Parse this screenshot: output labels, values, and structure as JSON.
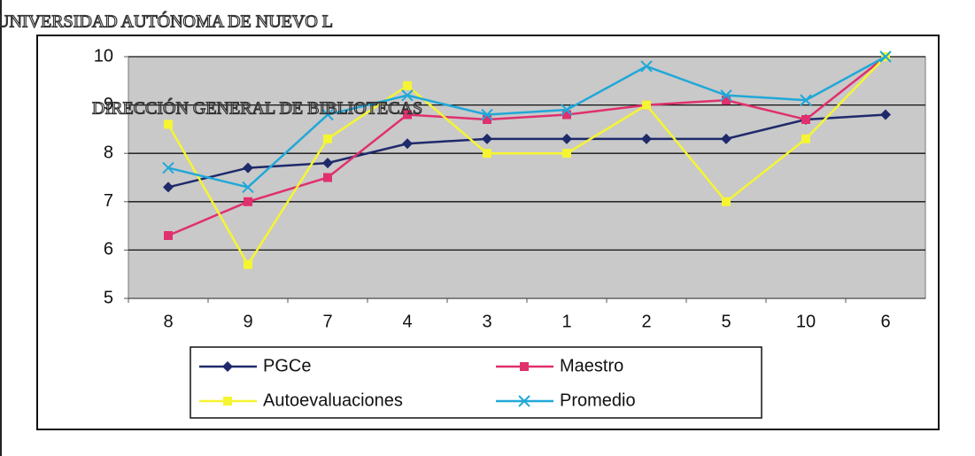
{
  "chart_data": {
    "type": "line",
    "annotations": [
      "UNIVERSIDAD AUTÓNOMA DE NUEVO L",
      "DIRECCIÓN GENERAL DE BIBLIOTECAS"
    ],
    "categories": [
      "8",
      "9",
      "7",
      "4",
      "3",
      "1",
      "2",
      "5",
      "10",
      "6"
    ],
    "series": [
      {
        "name": "PGCe",
        "color": "#1f2a6b",
        "marker": "diamond",
        "values": [
          7.3,
          7.7,
          7.8,
          8.2,
          8.3,
          8.3,
          8.3,
          8.3,
          8.7,
          8.8
        ]
      },
      {
        "name": "Maestro",
        "color": "#e0306e",
        "marker": "square",
        "values": [
          6.3,
          7.0,
          7.5,
          8.8,
          8.7,
          8.8,
          9.0,
          9.1,
          8.7,
          10.0
        ]
      },
      {
        "name": "Autoevaluaciones",
        "color": "#f5f532",
        "marker": "square",
        "values": [
          8.6,
          5.7,
          8.3,
          9.4,
          8.0,
          8.0,
          9.0,
          7.0,
          8.3,
          10.0
        ]
      },
      {
        "name": "Promedio",
        "color": "#20a8d8",
        "marker": "x",
        "values": [
          7.7,
          7.3,
          8.8,
          9.2,
          8.8,
          8.9,
          9.8,
          9.2,
          9.1,
          10.0
        ]
      }
    ],
    "ylim": [
      5,
      10
    ],
    "yticks": [
      5,
      6,
      7,
      8,
      9,
      10
    ],
    "grid": true
  }
}
